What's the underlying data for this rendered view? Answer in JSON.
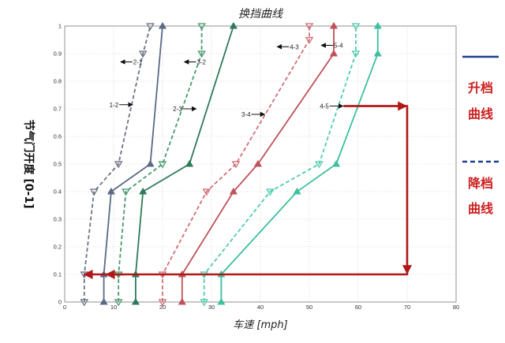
{
  "chart_data": {
    "type": "line",
    "title": "换挡曲线",
    "xlabel": "车速 [mph]",
    "ylabel": "节气门开度 [0-1]",
    "xlim": [
      0,
      80
    ],
    "ylim": [
      0,
      1
    ],
    "xticks": [
      "0",
      "10",
      "20",
      "30",
      "40",
      "50",
      "60",
      "70",
      "80"
    ],
    "yticks": [
      "0",
      "0.1",
      "0.2",
      "0.3",
      "0.4",
      "0.5",
      "0.6",
      "0.7",
      "0.8",
      "0.9",
      "1"
    ],
    "grid": "dotted",
    "series": [
      {
        "label": "1-2",
        "kind": "upshift",
        "color": "#5a6a84",
        "points": [
          [
            8,
            0
          ],
          [
            8,
            0.1
          ],
          [
            9.5,
            0.4
          ],
          [
            17.5,
            0.5
          ],
          [
            20,
            1
          ]
        ]
      },
      {
        "label": "2-1",
        "kind": "downshift",
        "color": "#6e7486",
        "points": [
          [
            4,
            0
          ],
          [
            4,
            0.1
          ],
          [
            6,
            0.4
          ],
          [
            11,
            0.5
          ],
          [
            16,
            0.9
          ],
          [
            17.5,
            1
          ]
        ]
      },
      {
        "label": "2-3",
        "kind": "upshift",
        "color": "#2e7a5a",
        "points": [
          [
            14.5,
            0
          ],
          [
            14.5,
            0.1
          ],
          [
            16,
            0.4
          ],
          [
            25.5,
            0.5
          ],
          [
            34.5,
            1
          ]
        ]
      },
      {
        "label": "3-2",
        "kind": "downshift",
        "color": "#4a9a70",
        "points": [
          [
            11,
            0
          ],
          [
            11,
            0.1
          ],
          [
            12.5,
            0.4
          ],
          [
            20,
            0.5
          ],
          [
            28,
            0.9
          ],
          [
            28,
            1
          ]
        ]
      },
      {
        "label": "3-4",
        "kind": "upshift",
        "color": "#c0505a",
        "points": [
          [
            24,
            0
          ],
          [
            24,
            0.1
          ],
          [
            34.5,
            0.4
          ],
          [
            39.5,
            0.5
          ],
          [
            55,
            0.9
          ],
          [
            55,
            1
          ]
        ]
      },
      {
        "label": "4-3",
        "kind": "downshift",
        "color": "#d07078",
        "points": [
          [
            20,
            0
          ],
          [
            20,
            0.1
          ],
          [
            29,
            0.4
          ],
          [
            35,
            0.5
          ],
          [
            50,
            0.95
          ],
          [
            50,
            1
          ]
        ]
      },
      {
        "label": "4-5",
        "kind": "upshift",
        "color": "#3ebfa0",
        "points": [
          [
            32,
            0
          ],
          [
            32,
            0.1
          ],
          [
            47.5,
            0.4
          ],
          [
            55.5,
            0.5
          ],
          [
            64,
            0.9
          ],
          [
            64,
            1
          ]
        ]
      },
      {
        "label": "5-4",
        "kind": "downshift",
        "color": "#50ccb0",
        "points": [
          [
            28.5,
            0
          ],
          [
            28.5,
            0.1
          ],
          [
            42,
            0.4
          ],
          [
            52,
            0.5
          ],
          [
            59.5,
            0.9
          ],
          [
            59.5,
            1
          ]
        ]
      }
    ],
    "annotations": [
      {
        "text": "2-1",
        "x": 14,
        "y": 0.87,
        "arrow": "left"
      },
      {
        "text": "1-2",
        "x": 11,
        "y": 0.715,
        "arrow": "right"
      },
      {
        "text": "3-2",
        "x": 27,
        "y": 0.87,
        "arrow": "left"
      },
      {
        "text": "2-3",
        "x": 24,
        "y": 0.7,
        "arrow": "right"
      },
      {
        "text": "3-4",
        "x": 38,
        "y": 0.68,
        "arrow": "right"
      },
      {
        "text": "4-3",
        "x": 46,
        "y": 0.925,
        "arrow": "left"
      },
      {
        "text": "4-5",
        "x": 54,
        "y": 0.71,
        "arrow": "right"
      },
      {
        "text": "5-4",
        "x": 55,
        "y": 0.93,
        "arrow": "left"
      }
    ],
    "hysteresis": {
      "color": "#b01818",
      "path": [
        [
          57,
          0.71
        ],
        [
          70,
          0.71
        ],
        [
          70,
          0.1
        ],
        [
          4,
          0.1
        ]
      ]
    },
    "legend": {
      "position": "right",
      "entries": [
        {
          "text": "升档曲线",
          "style": "solid",
          "color": "#1f3f8f",
          "text_color": "#cc2020"
        },
        {
          "text": "降档曲线",
          "style": "dashed",
          "color": "#1f3f8f",
          "text_color": "#cc2020"
        }
      ]
    }
  }
}
